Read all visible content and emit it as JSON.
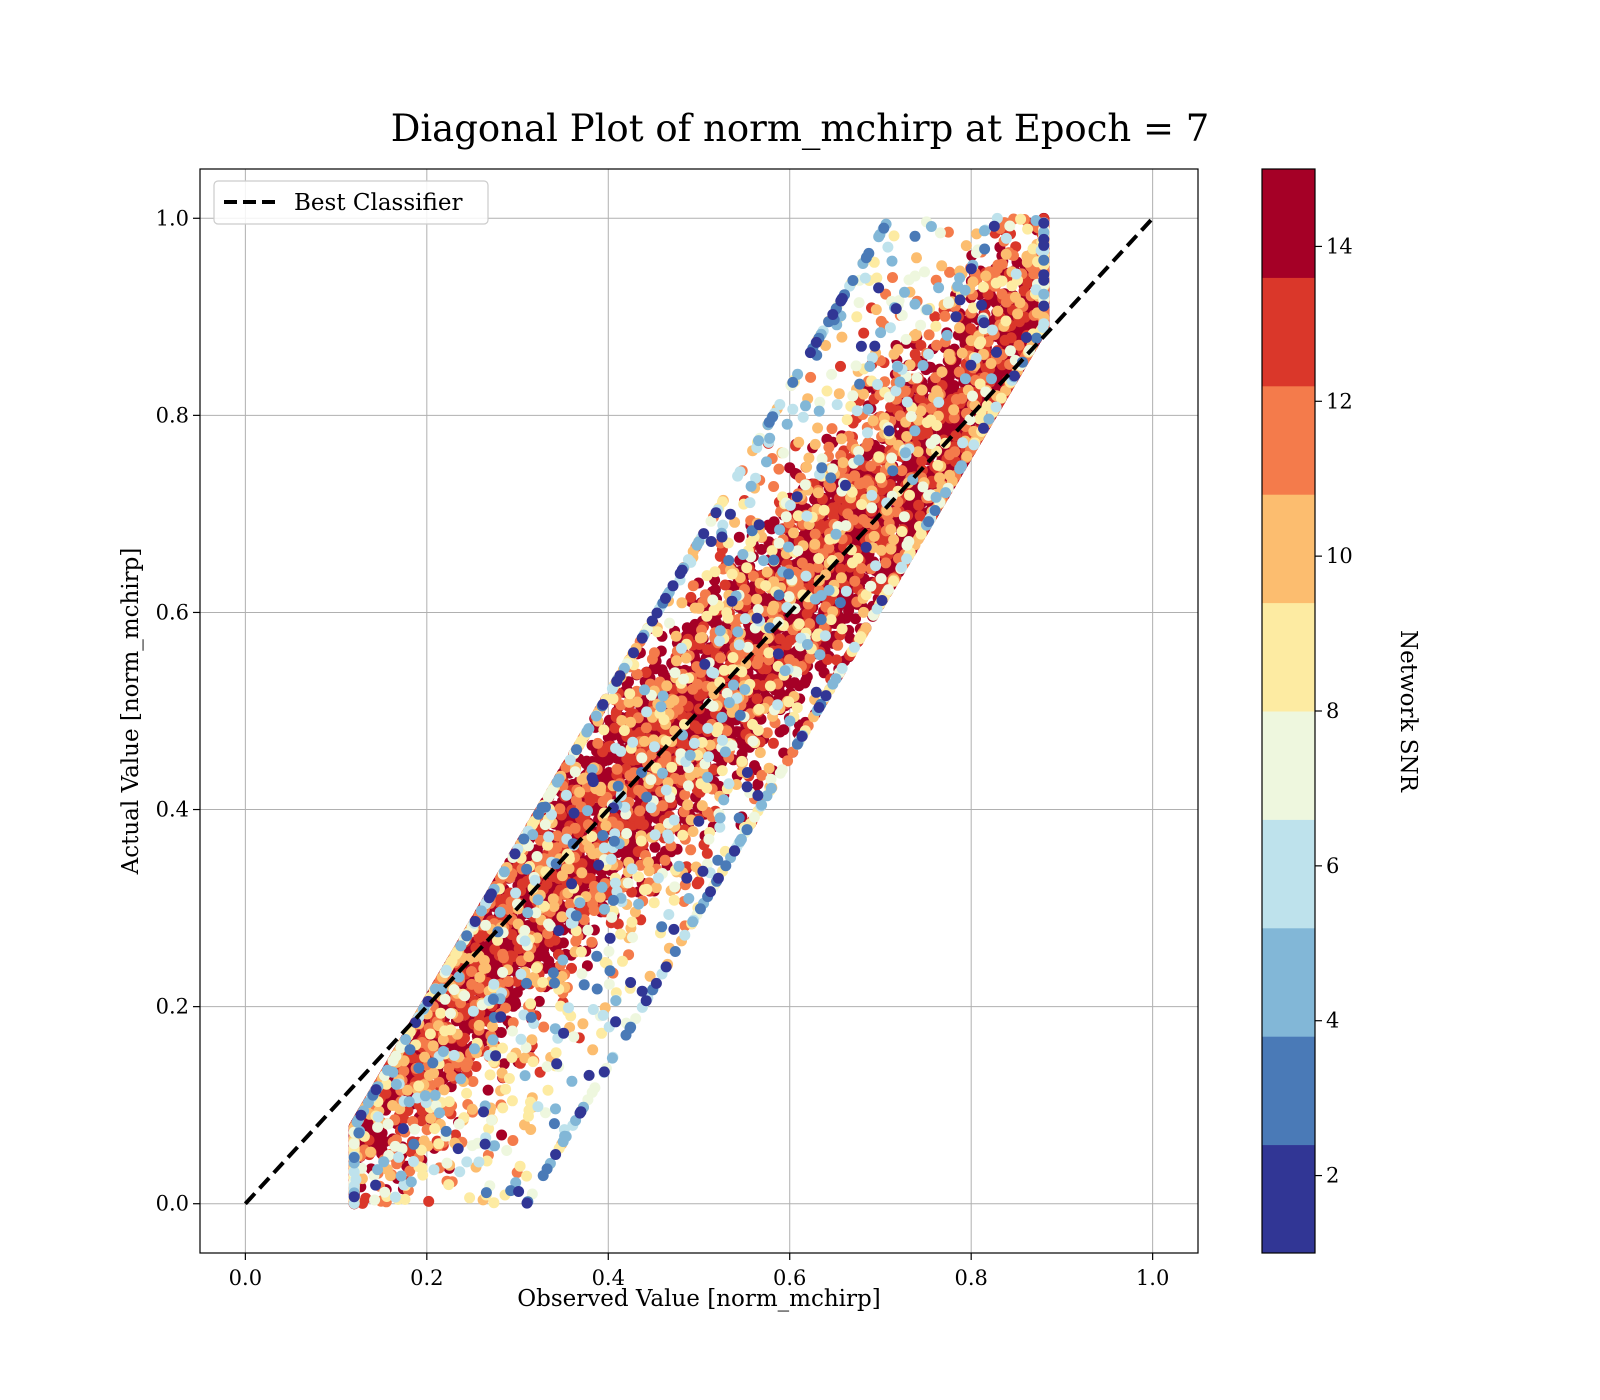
{
  "chart_data": {
    "type": "scatter",
    "title": "Diagonal Plot of norm_mchirp at Epoch = 7",
    "xlabel": "Observed Value [norm_mchirp]",
    "ylabel": "Actual Value [norm_mchirp]",
    "xlim": [
      -0.05,
      1.05
    ],
    "ylim": [
      -0.05,
      1.05
    ],
    "xticks": [
      "0.0",
      "0.2",
      "0.4",
      "0.6",
      "0.8",
      "1.0"
    ],
    "yticks": [
      "0.0",
      "0.2",
      "0.4",
      "0.6",
      "0.8",
      "1.0"
    ],
    "grid": true,
    "legend": {
      "placement": "upper-left",
      "entries": [
        "Best Classifier"
      ]
    },
    "reference_line": {
      "name": "Best Classifier",
      "style": "dashed",
      "color": "#000000",
      "x": [
        0.0,
        1.0
      ],
      "y": [
        0.0,
        1.0
      ]
    },
    "colorbar": {
      "label": "Network SNR",
      "range": [
        1,
        15
      ],
      "ticks": [
        "2",
        "4",
        "6",
        "8",
        "10",
        "12",
        "14"
      ],
      "bins": [
        {
          "from": 1.0,
          "to": 2.4,
          "color": "#313695"
        },
        {
          "from": 2.4,
          "to": 3.8,
          "color": "#4a7ab7"
        },
        {
          "from": 3.8,
          "to": 5.2,
          "color": "#82b7d7"
        },
        {
          "from": 5.2,
          "to": 6.6,
          "color": "#bee2ec"
        },
        {
          "from": 6.6,
          "to": 8.0,
          "color": "#eef7de"
        },
        {
          "from": 8.0,
          "to": 9.4,
          "color": "#fdeba2"
        },
        {
          "from": 9.4,
          "to": 10.8,
          "color": "#fcbd6f"
        },
        {
          "from": 10.8,
          "to": 12.2,
          "color": "#f47b4b"
        },
        {
          "from": 12.2,
          "to": 13.6,
          "color": "#da372a"
        },
        {
          "from": 13.6,
          "to": 15.0,
          "color": "#a50026"
        }
      ]
    },
    "scatter_summary": {
      "point_color_encoding": "Network SNR",
      "observed_range": [
        0.12,
        0.88
      ],
      "actual_range": [
        0.0,
        1.0
      ],
      "trend": "points scatter around the diagonal; low-SNR points spread furthest from it"
    }
  }
}
